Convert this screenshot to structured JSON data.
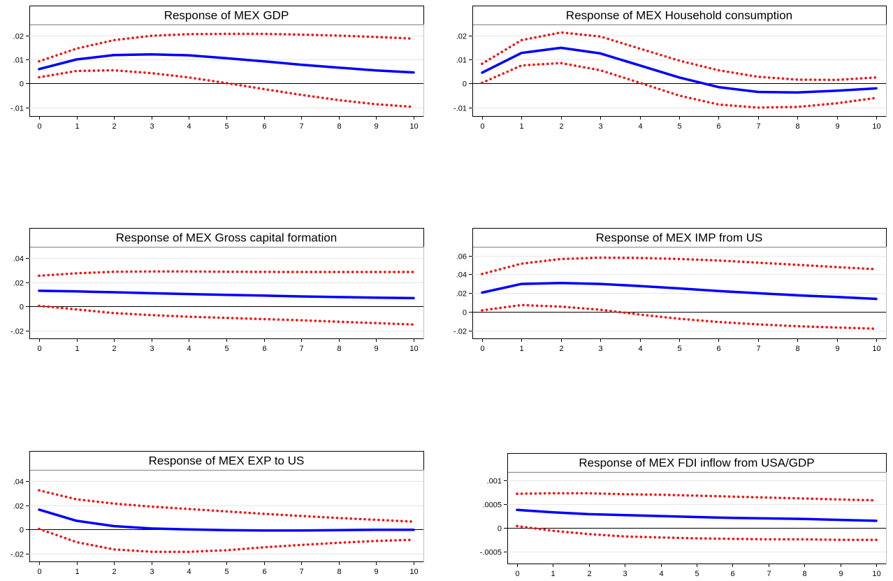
{
  "chart_data": [
    {
      "type": "line",
      "title": "Response of MEX GDP",
      "x": [
        0,
        1,
        2,
        3,
        4,
        5,
        6,
        7,
        8,
        9,
        10
      ],
      "xticks": [
        "0",
        "1",
        "2",
        "3",
        "4",
        "5",
        "6",
        "7",
        "8",
        "9",
        "10"
      ],
      "yticks": [
        -0.01,
        0,
        0.01,
        0.02
      ],
      "ytick_labels": [
        "-.01",
        "0",
        ".01",
        ".02"
      ],
      "ylim": [
        -0.0135,
        0.0245
      ],
      "grid": true,
      "series": [
        {
          "role": "response",
          "style": "solid",
          "color": "#0000ff",
          "values": [
            0.006,
            0.01,
            0.0118,
            0.0121,
            0.0117,
            0.0105,
            0.0092,
            0.0078,
            0.0066,
            0.0054,
            0.0046
          ]
        },
        {
          "role": "upper",
          "style": "dotted",
          "color": "#ff0000",
          "values": [
            0.0092,
            0.0145,
            0.018,
            0.0198,
            0.0205,
            0.0206,
            0.0206,
            0.0203,
            0.0199,
            0.0193,
            0.0186
          ]
        },
        {
          "role": "lower",
          "style": "dotted",
          "color": "#ff0000",
          "values": [
            0.0026,
            0.0052,
            0.0055,
            0.0043,
            0.0025,
            0.0002,
            -0.0023,
            -0.0047,
            -0.0069,
            -0.0086,
            -0.0097
          ]
        }
      ]
    },
    {
      "type": "line",
      "title": "Response of MEX Household consumption",
      "x": [
        0,
        1,
        2,
        3,
        4,
        5,
        6,
        7,
        8,
        9,
        10
      ],
      "xticks": [
        "0",
        "1",
        "2",
        "3",
        "4",
        "5",
        "6",
        "7",
        "8",
        "9",
        "10"
      ],
      "yticks": [
        -0.01,
        0,
        0.01,
        0.02
      ],
      "ytick_labels": [
        "-.01",
        "0",
        ".01",
        ".02"
      ],
      "ylim": [
        -0.0135,
        0.0245
      ],
      "grid": true,
      "series": [
        {
          "role": "response",
          "style": "solid",
          "color": "#0000ff",
          "values": [
            0.0045,
            0.0127,
            0.0148,
            0.0125,
            0.0075,
            0.0025,
            -0.0015,
            -0.0035,
            -0.0037,
            -0.003,
            -0.002
          ]
        },
        {
          "role": "upper",
          "style": "dotted",
          "color": "#ff0000",
          "values": [
            0.0082,
            0.018,
            0.0212,
            0.0195,
            0.0145,
            0.0095,
            0.0055,
            0.0028,
            0.0016,
            0.0015,
            0.0025
          ]
        },
        {
          "role": "lower",
          "style": "dotted",
          "color": "#ff0000",
          "values": [
            0.0003,
            0.0075,
            0.0085,
            0.0055,
            0.0003,
            -0.005,
            -0.0087,
            -0.01,
            -0.0097,
            -0.0082,
            -0.006
          ]
        }
      ]
    },
    {
      "type": "line",
      "title": "Response of MEX Gross capital formation",
      "x": [
        0,
        1,
        2,
        3,
        4,
        5,
        6,
        7,
        8,
        9,
        10
      ],
      "xticks": [
        "0",
        "1",
        "2",
        "3",
        "4",
        "5",
        "6",
        "7",
        "8",
        "9",
        "10"
      ],
      "yticks": [
        -0.02,
        0,
        0.02,
        0.04
      ],
      "ytick_labels": [
        "-.02",
        "0",
        ".02",
        ".04"
      ],
      "ylim": [
        -0.0265,
        0.0495
      ],
      "grid": true,
      "series": [
        {
          "role": "response",
          "style": "solid",
          "color": "#0000ff",
          "values": [
            0.013,
            0.0125,
            0.0118,
            0.011,
            0.0103,
            0.0096,
            0.009,
            0.0083,
            0.0078,
            0.0073,
            0.0069
          ]
        },
        {
          "role": "upper",
          "style": "dotted",
          "color": "#ff0000",
          "values": [
            0.0255,
            0.0275,
            0.0288,
            0.029,
            0.029,
            0.0288,
            0.0287,
            0.0286,
            0.0286,
            0.0286,
            0.0286
          ]
        },
        {
          "role": "lower",
          "style": "dotted",
          "color": "#ff0000",
          "values": [
            0.0005,
            -0.0025,
            -0.0055,
            -0.0072,
            -0.0085,
            -0.0095,
            -0.0105,
            -0.0115,
            -0.0127,
            -0.0138,
            -0.015
          ]
        }
      ]
    },
    {
      "type": "line",
      "title": "Response of MEX IMP from US",
      "x": [
        0,
        1,
        2,
        3,
        4,
        5,
        6,
        7,
        8,
        9,
        10
      ],
      "xticks": [
        "0",
        "1",
        "2",
        "3",
        "4",
        "5",
        "6",
        "7",
        "8",
        "9",
        "10"
      ],
      "yticks": [
        -0.02,
        0,
        0.02,
        0.04,
        0.06
      ],
      "ytick_labels": [
        "-.02",
        "0",
        ".02",
        ".04",
        ".06"
      ],
      "ylim": [
        -0.0285,
        0.0695
      ],
      "grid": true,
      "series": [
        {
          "role": "response",
          "style": "solid",
          "color": "#0000ff",
          "values": [
            0.0205,
            0.0298,
            0.0308,
            0.0298,
            0.0275,
            0.025,
            0.0222,
            0.0198,
            0.0176,
            0.0158,
            0.0138
          ]
        },
        {
          "role": "upper",
          "style": "dotted",
          "color": "#ff0000",
          "values": [
            0.0405,
            0.0515,
            0.0565,
            0.0578,
            0.0575,
            0.0565,
            0.0548,
            0.0525,
            0.0502,
            0.0478,
            0.0455
          ]
        },
        {
          "role": "lower",
          "style": "dotted",
          "color": "#ff0000",
          "values": [
            0.0015,
            0.0072,
            0.0055,
            0.0022,
            -0.003,
            -0.0075,
            -0.011,
            -0.0135,
            -0.0155,
            -0.0168,
            -0.0182
          ]
        }
      ]
    },
    {
      "type": "line",
      "title": "Response of MEX EXP to US",
      "x": [
        0,
        1,
        2,
        3,
        4,
        5,
        6,
        7,
        8,
        9,
        10
      ],
      "xticks": [
        "0",
        "1",
        "2",
        "3",
        "4",
        "5",
        "6",
        "7",
        "8",
        "9",
        "10"
      ],
      "yticks": [
        -0.02,
        0,
        0.02,
        0.04
      ],
      "ytick_labels": [
        "-.02",
        "0",
        ".02",
        ".04"
      ],
      "ylim": [
        -0.0265,
        0.0495
      ],
      "grid": true,
      "series": [
        {
          "role": "response",
          "style": "solid",
          "color": "#0000ff",
          "values": [
            0.0165,
            0.0072,
            0.0028,
            0.0008,
            0.0,
            -0.0005,
            -0.0008,
            -0.0008,
            -0.0005,
            -0.0003,
            -0.0003
          ]
        },
        {
          "role": "upper",
          "style": "dotted",
          "color": "#ff0000",
          "values": [
            0.0325,
            0.025,
            0.0215,
            0.019,
            0.017,
            0.015,
            0.013,
            0.0112,
            0.0095,
            0.008,
            0.0065
          ]
        },
        {
          "role": "lower",
          "style": "dotted",
          "color": "#ff0000",
          "values": [
            0.0005,
            -0.0105,
            -0.0165,
            -0.0185,
            -0.0185,
            -0.0172,
            -0.0148,
            -0.0128,
            -0.011,
            -0.0095,
            -0.0085
          ]
        }
      ]
    },
    {
      "type": "line",
      "title": "Response of MEX FDI inflow from USA/GDP",
      "x": [
        0,
        1,
        2,
        3,
        4,
        5,
        6,
        7,
        8,
        9,
        10
      ],
      "xticks": [
        "0",
        "1",
        "2",
        "3",
        "4",
        "5",
        "6",
        "7",
        "8",
        "9",
        "10"
      ],
      "yticks": [
        -0.0005,
        0,
        0.0005,
        0.001
      ],
      "ytick_labels": [
        "-.0005",
        "0",
        ".0005",
        ".001"
      ],
      "ylim": [
        -0.00075,
        0.00118
      ],
      "grid": true,
      "series": [
        {
          "role": "response",
          "style": "solid",
          "color": "#0000ff",
          "values": [
            0.00038,
            0.00033,
            0.00029,
            0.00027,
            0.00025,
            0.00023,
            0.00021,
            0.0002,
            0.00019,
            0.00017,
            0.00015
          ]
        },
        {
          "role": "upper",
          "style": "dotted",
          "color": "#ff0000",
          "values": [
            0.00072,
            0.00073,
            0.00073,
            0.00071,
            0.0007,
            0.00068,
            0.00066,
            0.00064,
            0.00062,
            0.0006,
            0.00058
          ]
        },
        {
          "role": "lower",
          "style": "dotted",
          "color": "#ff0000",
          "values": [
            4e-05,
            -6e-05,
            -0.00013,
            -0.00018,
            -0.0002,
            -0.00022,
            -0.00023,
            -0.00024,
            -0.00024,
            -0.00025,
            -0.00025
          ]
        }
      ]
    }
  ]
}
